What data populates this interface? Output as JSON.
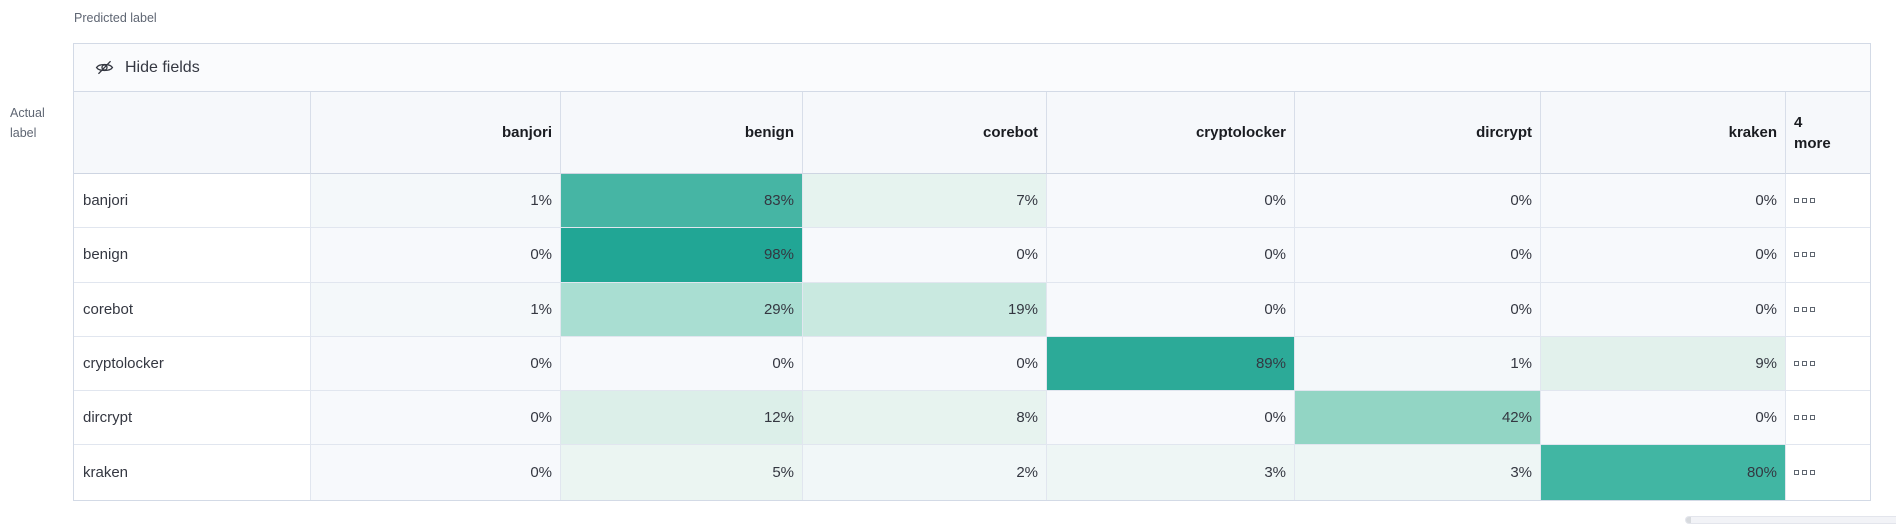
{
  "labels": {
    "predicted_axis": "Predicted label",
    "actual_axis_line1": "Actual",
    "actual_axis_line2": "label"
  },
  "toolbar": {
    "hide_fields_label": "Hide fields",
    "icon": "eye-closed-icon"
  },
  "chart_data": {
    "type": "heatmap",
    "x_axis_label": "Predicted label",
    "y_axis_label": "Actual label",
    "columns": [
      "banjori",
      "benign",
      "corebot",
      "cryptolocker",
      "dircrypt",
      "kraken"
    ],
    "extra_columns_indicator": {
      "count": "4",
      "word": "more"
    },
    "rows": [
      "banjori",
      "benign",
      "corebot",
      "cryptolocker",
      "dircrypt",
      "kraken"
    ],
    "values_percent": [
      [
        1,
        83,
        7,
        0,
        0,
        0
      ],
      [
        0,
        98,
        0,
        0,
        0,
        0
      ],
      [
        1,
        29,
        19,
        0,
        0,
        0
      ],
      [
        0,
        0,
        0,
        89,
        1,
        9
      ],
      [
        0,
        12,
        8,
        0,
        42,
        0
      ],
      [
        0,
        5,
        2,
        3,
        3,
        80
      ]
    ],
    "cell_colors": [
      [
        "#f4f8fa",
        "#46b5a4",
        "#e6f3ef",
        "#f7f9fc",
        "#f7f9fc",
        "#f7f9fc"
      ],
      [
        "#f7f9fc",
        "#21a695",
        "#f7f9fc",
        "#f7f9fc",
        "#f7f9fc",
        "#f7f9fc"
      ],
      [
        "#f4f8fa",
        "#a9ded2",
        "#c9e9e0",
        "#f7f9fc",
        "#f7f9fc",
        "#f7f9fc"
      ],
      [
        "#f7f9fc",
        "#f7f9fc",
        "#f7f9fc",
        "#2caa98",
        "#f4f8fa",
        "#e2f1ec"
      ],
      [
        "#f7f9fc",
        "#dcefe9",
        "#e7f3ef",
        "#f7f9fc",
        "#92d5c4",
        "#f7f9fc"
      ],
      [
        "#f7f9fc",
        "#ebf5f2",
        "#f1f7f8",
        "#eef6f5",
        "#eef6f5",
        "#41b6a3"
      ]
    ],
    "value_suffix": "%",
    "heat_scale": {
      "zero": "#f7f9fc",
      "max": "#21a695"
    },
    "more_cell_icon": "boxes-horizontal-icon",
    "grid": "on",
    "legend": "none"
  },
  "colors": {
    "accent_teal": "#21a695",
    "panel_border": "#d3dae6",
    "header_bg": "#f6f8fb",
    "controls_bg": "#fafbfd",
    "text_dark": "#343741",
    "axis_text": "#5f6673"
  }
}
